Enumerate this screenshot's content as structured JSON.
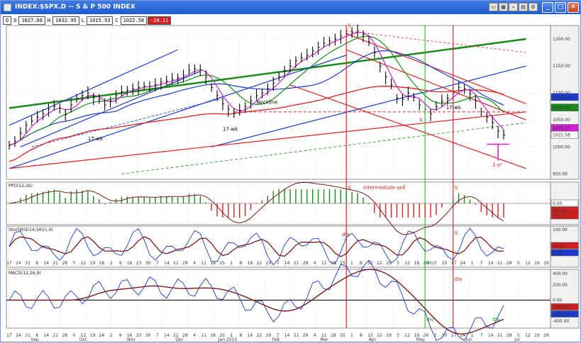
{
  "window": {
    "title": "INDEX:$SPX.D -- S & P 500 INDEX",
    "buttons": [
      "minimize",
      "maximize",
      "close"
    ]
  },
  "quote": {
    "d_label": "D",
    "open": "1027.66",
    "high": "1032.95",
    "low": "1015.93",
    "close": "1022.58",
    "change": "-28.11"
  },
  "colors": {
    "price": "#000000",
    "ma_green": "#1a8a1a",
    "ma_magenta": "#d020d0",
    "ma_red": "#e02020",
    "ma_blue": "#1a3ad0",
    "channel_blue": "#1a3ad0",
    "trend_green": "#1a8a1a",
    "trend_red": "#e02020",
    "vline_red": "#e02020",
    "vline_green": "#30c030",
    "tag_blue": "#1a3ad0",
    "tag_red": "#d02020",
    "tag_green": "#1a9a1a"
  },
  "chart_data": {
    "type": "line",
    "title": "INDEX:$SPX.D -- S & P 500 INDEX",
    "panels": [
      {
        "name": "price",
        "right_axis_ticks": [
          "1200.00",
          "1150.00",
          "1100.00",
          "1050.00",
          "1000.00",
          "950.00"
        ],
        "right_value_tags": [
          {
            "value": "1092.42",
            "color": "blue"
          },
          {
            "value": "1073.01",
            "color": "green"
          },
          {
            "value": "1035.17",
            "color": "magenta"
          },
          {
            "value": "1022.58",
            "color": "white"
          }
        ],
        "ylim": [
          940,
          1225
        ],
        "close_series": [
          1003,
          1010,
          1025,
          1040,
          1048,
          1055,
          1062,
          1070,
          1075,
          1072,
          1060,
          1078,
          1090,
          1095,
          1100,
          1092,
          1088,
          1078,
          1085,
          1095,
          1102,
          1105,
          1108,
          1110,
          1113,
          1112,
          1115,
          1120,
          1122,
          1125,
          1128,
          1133,
          1142,
          1145,
          1143,
          1130,
          1110,
          1095,
          1080,
          1070,
          1062,
          1068,
          1075,
          1085,
          1095,
          1100,
          1108,
          1118,
          1130,
          1140,
          1150,
          1160,
          1165,
          1170,
          1178,
          1185,
          1192,
          1196,
          1200,
          1205,
          1210,
          1212,
          1215,
          1208,
          1195,
          1175,
          1150,
          1130,
          1115,
          1090,
          1088,
          1100,
          1092,
          1078,
          1070,
          1062,
          1075,
          1085,
          1090,
          1100,
          1110,
          1108,
          1098,
          1085,
          1065,
          1055,
          1045,
          1030,
          1022
        ],
        "annotations": [
          "S",
          "Neckline",
          "b",
          "S",
          "2-yr",
          "17-wk",
          "17-wk",
          "17-wk"
        ]
      },
      {
        "name": "PPO",
        "label": "PPO(12,26)",
        "right_value_tags": [
          {
            "value": "0.00",
            "color": "white"
          },
          {
            "value": "-25.14",
            "color": "red"
          },
          {
            "value": "-10.11",
            "color": "red"
          }
        ],
        "annotations": [
          "S",
          "Intermediate sell",
          "S"
        ]
      },
      {
        "name": "StochRSI",
        "label": "StochRSI(14,34)(1,0)",
        "right_axis_ticks": [
          "100.00",
          "0.00"
        ],
        "right_value_tags": [
          {
            "value": "30.12",
            "color": "red"
          },
          {
            "value": "3.06",
            "color": "blue"
          }
        ],
        "annotations": [
          "div",
          "div",
          "S"
        ]
      },
      {
        "name": "MACD",
        "label": "MACD(12,26,9)",
        "right_axis_ticks": [
          "400.00",
          "200.00",
          "0.00",
          "-400.00"
        ],
        "right_value_tags": [
          {
            "value": "-333.98",
            "color": "red"
          },
          {
            "value": "-533.07",
            "color": "blue"
          }
        ],
        "annotations": [
          "div",
          "div",
          "div"
        ]
      }
    ],
    "x_tick_labels": [
      "17",
      "24",
      "31",
      "8",
      "14",
      "21",
      "28",
      "5",
      "12",
      "19",
      "26",
      "2",
      "9",
      "16",
      "23",
      "30",
      "7",
      "14",
      "21",
      "28",
      "4",
      "11",
      "18",
      "25",
      "1",
      "8",
      "16",
      "22",
      "29",
      "7",
      "14",
      "21",
      "29",
      "4",
      "11",
      "18",
      "25",
      "1",
      "8",
      "15",
      "22",
      "29",
      "5",
      "12",
      "19",
      "26",
      "3",
      "10",
      "17",
      "24",
      "1",
      "7",
      "14",
      "21",
      "28",
      "5",
      "12",
      "19",
      "26"
    ],
    "month_labels": [
      "Sep",
      "Oct",
      "Nov",
      "Dec",
      "Jan 2010",
      "Feb",
      "Mar",
      "Apr",
      "May",
      "Jun",
      "Jul"
    ]
  }
}
